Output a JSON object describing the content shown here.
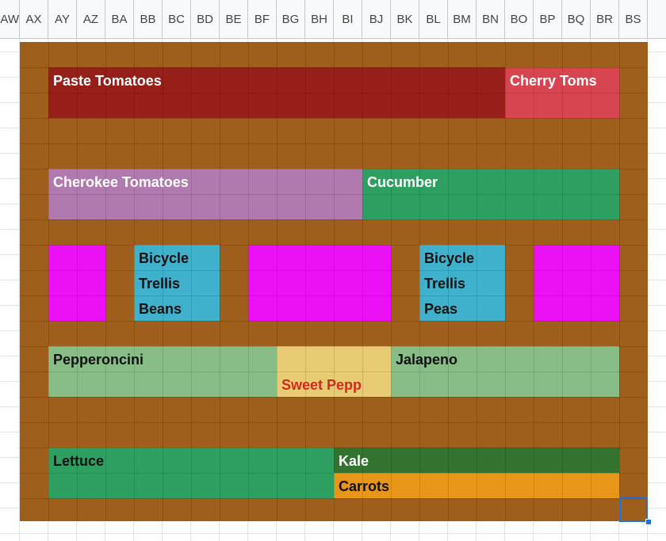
{
  "columns": [
    "AW",
    "AX",
    "AY",
    "AZ",
    "BA",
    "BB",
    "BC",
    "BD",
    "BE",
    "BF",
    "BG",
    "BH",
    "BI",
    "BJ",
    "BK",
    "BL",
    "BM",
    "BN",
    "BO",
    "BP",
    "BQ",
    "BR",
    "BS"
  ],
  "colors": {
    "bed": "#9e5e1c",
    "paste_tomatoes": "#962019",
    "cherry_toms": "#d64550",
    "cherokee_tomatoes": "#b07aae",
    "cucumber": "#2e9f60",
    "magenta": "#ec10f4",
    "bicycle_trellis": "#3fb1cc",
    "pepperoncini": "#88bd87",
    "sweet_pepp": "#e8cc73",
    "jalapeno": "#88bd87",
    "lettuce": "#2e9f60",
    "kale": "#33722f",
    "carrots": "#e89619"
  },
  "beds": {
    "paste_tomatoes": "Paste Tomatoes",
    "cherry_toms": "Cherry Toms",
    "cherokee_tomatoes": "Cherokee Tomatoes",
    "cucumber": "Cucumber",
    "bicycle_beans": {
      "line1": "Bicycle",
      "line2": "Trellis",
      "line3": "Beans"
    },
    "bicycle_peas": {
      "line1": "Bicycle",
      "line2": "Trellis",
      "line3": "Peas"
    },
    "pepperoncini": "Pepperoncini",
    "sweet_pepp": "Sweet Pepp",
    "jalapeno": "Jalapeno",
    "lettuce": "Lettuce",
    "kale": "Kale",
    "carrots": "Carrots"
  }
}
